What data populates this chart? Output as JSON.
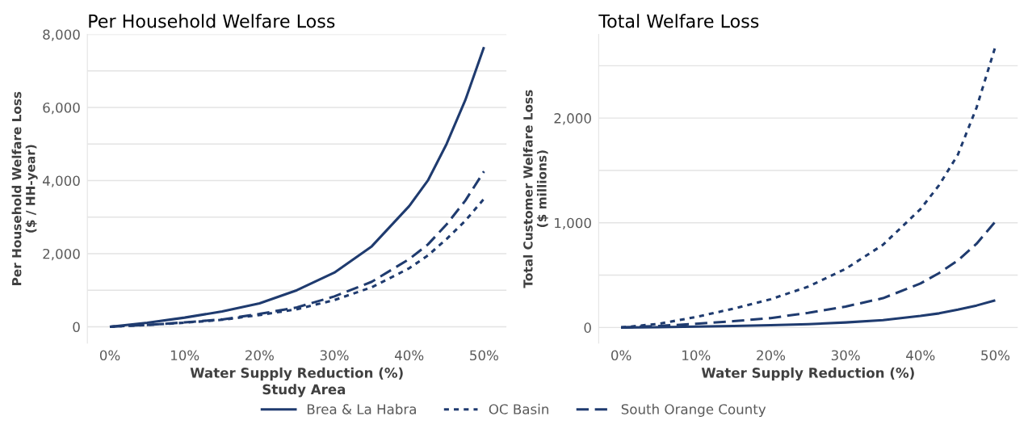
{
  "chart_data": [
    {
      "type": "line",
      "title": "Per Household Welfare Loss",
      "xlabel": "Water Supply Reduction (%)",
      "ylabel": "Per Household Welfare Loss\n($ / HH-year)",
      "legend_title": "Study Area",
      "legend": "bottom",
      "grid": "y",
      "x": [
        0,
        5,
        10,
        15,
        20,
        25,
        30,
        35,
        40,
        42.5,
        45,
        47.5,
        50
      ],
      "xlim": [
        -3,
        53
      ],
      "xticks": [
        {
          "value": 0,
          "label": "0%"
        },
        {
          "value": 10,
          "label": "10%"
        },
        {
          "value": 20,
          "label": "20%"
        },
        {
          "value": 30,
          "label": "30%"
        },
        {
          "value": 40,
          "label": "40%"
        },
        {
          "value": 50,
          "label": "50%"
        }
      ],
      "ylim": [
        -450,
        8000
      ],
      "yticks": [
        {
          "value": 0,
          "label": "0"
        },
        {
          "value": 1000,
          "label": null
        },
        {
          "value": 2000,
          "label": "2,000"
        },
        {
          "value": 3000,
          "label": null
        },
        {
          "value": 4000,
          "label": "4,000"
        },
        {
          "value": 5000,
          "label": null
        },
        {
          "value": 6000,
          "label": "6,000"
        },
        {
          "value": 7000,
          "label": null
        },
        {
          "value": 8000,
          "label": "8,000"
        }
      ],
      "series": [
        {
          "name": "Brea & La Habra",
          "color": "#1f3b6f",
          "line_style": "solid",
          "values": [
            0,
            110,
            250,
            420,
            640,
            1000,
            1480,
            2200,
            3300,
            4000,
            5000,
            6200,
            7650
          ]
        },
        {
          "name": "OC Basin",
          "color": "#1f3b6f",
          "line_style": "dotted",
          "values": [
            0,
            50,
            110,
            190,
            320,
            480,
            730,
            1080,
            1600,
            1950,
            2400,
            2900,
            3500
          ]
        },
        {
          "name": "South Orange County",
          "color": "#1f3b6f",
          "line_style": "dashed",
          "values": [
            0,
            50,
            120,
            200,
            350,
            530,
            830,
            1230,
            1850,
            2250,
            2800,
            3450,
            4250
          ]
        }
      ]
    },
    {
      "type": "line",
      "title": "Total Welfare Loss",
      "xlabel": "Water Supply Reduction (%)",
      "ylabel": "Total Customer Welfare Loss\n($ millions)",
      "grid": "y",
      "x": [
        0,
        5,
        10,
        15,
        20,
        25,
        30,
        35,
        40,
        42.5,
        45,
        47.5,
        50
      ],
      "xlim": [
        -3,
        53
      ],
      "xticks": [
        {
          "value": 0,
          "label": "0%"
        },
        {
          "value": 10,
          "label": "10%"
        },
        {
          "value": 20,
          "label": "20%"
        },
        {
          "value": 30,
          "label": "30%"
        },
        {
          "value": 40,
          "label": "40%"
        },
        {
          "value": 50,
          "label": "50%"
        }
      ],
      "ylim": [
        -150,
        2800
      ],
      "yticks": [
        {
          "value": 0,
          "label": "0"
        },
        {
          "value": 500,
          "label": null
        },
        {
          "value": 1000,
          "label": "1,000"
        },
        {
          "value": 1500,
          "label": null
        },
        {
          "value": 2000,
          "label": "2,000"
        },
        {
          "value": 2500,
          "label": null
        }
      ],
      "series": [
        {
          "color": "#1f3b6f",
          "line_style": "solid",
          "values": [
            0,
            3,
            8,
            15,
            22,
            32,
            48,
            70,
            110,
            135,
            170,
            210,
            260
          ]
        },
        {
          "color": "#1f3b6f",
          "line_style": "dotted",
          "values": [
            0,
            35,
            100,
            180,
            270,
            390,
            560,
            790,
            1130,
            1360,
            1650,
            2100,
            2680
          ]
        },
        {
          "color": "#1f3b6f",
          "line_style": "dashed",
          "values": [
            0,
            15,
            35,
            60,
            90,
            140,
            200,
            280,
            420,
            520,
            640,
            800,
            1010
          ]
        }
      ]
    }
  ]
}
